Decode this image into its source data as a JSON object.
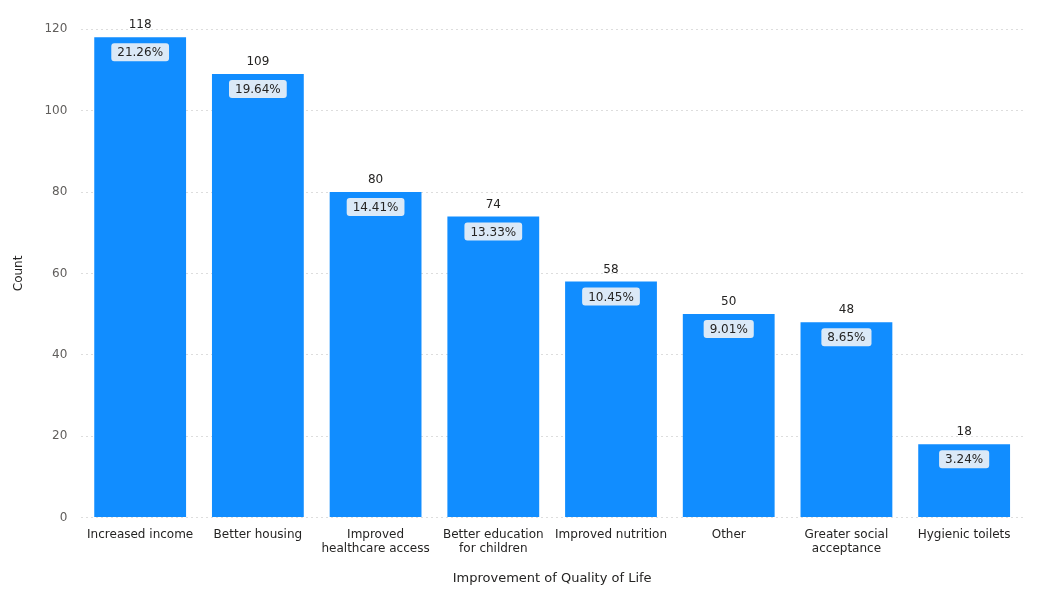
{
  "chart_data": {
    "type": "bar",
    "xlabel": "Improvement of Quality of Life",
    "ylabel": "Count",
    "categories": [
      "Increased income",
      "Better housing",
      "Improved healthcare access",
      "Better education for children",
      "Improved nutrition",
      "Other",
      "Greater social acceptance",
      "Hygienic toilets"
    ],
    "values": [
      118,
      109,
      80,
      74,
      58,
      50,
      48,
      18
    ],
    "annotations": [
      {
        "text": "21.26%",
        "x": "Increased income",
        "y": 118
      },
      {
        "text": "19.64%",
        "x": "Better housing",
        "y": 109
      },
      {
        "text": "14.41%",
        "x": "Improved healthcare access",
        "y": 80
      },
      {
        "text": "13.33%",
        "x": "Better education for children",
        "y": 74
      },
      {
        "text": "10.45%",
        "x": "Improved nutrition",
        "y": 58
      },
      {
        "text": "9.01%",
        "x": "Other",
        "y": 50
      },
      {
        "text": "8.65%",
        "x": "Greater social acceptance",
        "y": 48
      },
      {
        "text": "3.24%",
        "x": "Hygienic toilets",
        "y": 18
      }
    ],
    "color": "#118dff",
    "data_labels": true,
    "ylim": [
      0,
      120
    ],
    "yticks": [
      0,
      20,
      40,
      60,
      80,
      100,
      120
    ],
    "grid": "y",
    "legend": false
  }
}
